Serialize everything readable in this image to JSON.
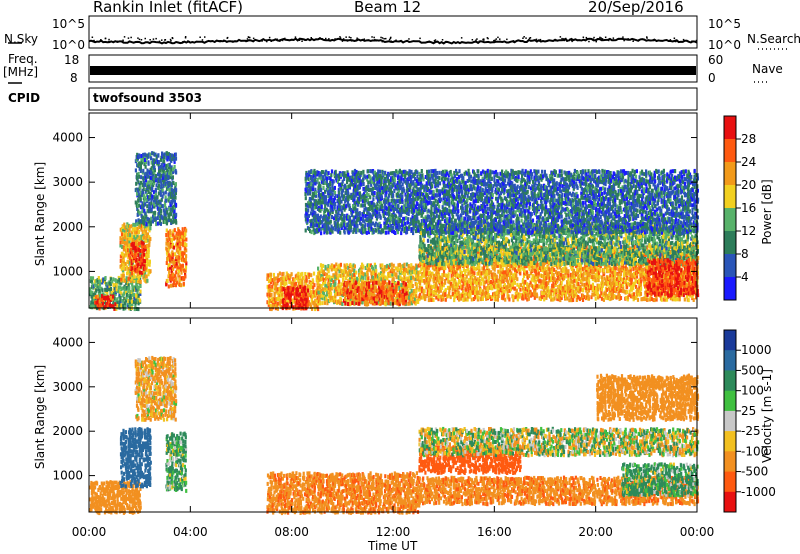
{
  "header": {
    "station": "Rankin Inlet (fitACF)",
    "beam": "Beam 12",
    "date": "20/Sep/2016"
  },
  "noise_panel": {
    "left_label": "N.Sky",
    "right_label": "N.Search",
    "left_ticks": [
      "10^5",
      "10^0"
    ],
    "right_ticks": [
      "10^5",
      "10^0"
    ]
  },
  "freq_panel": {
    "left_label_top": "Freq.",
    "left_label_bottom": "[MHz]",
    "right_label": "Nave",
    "left_ticks": [
      "18",
      "8"
    ],
    "right_ticks": [
      "60",
      "0"
    ]
  },
  "cpid": {
    "label": "CPID",
    "value": "twofsound 3503"
  },
  "chart_data": [
    {
      "type": "heatmap",
      "parameter": "Power",
      "ylabel": "Slant Range [km]",
      "xlabel": "Time UT",
      "x_ticks": [
        "00:00",
        "04:00",
        "08:00",
        "12:00",
        "16:00",
        "20:00",
        "00:00"
      ],
      "x_range_hours": [
        0,
        24
      ],
      "y_ticks": [
        1000,
        2000,
        3000,
        4000
      ],
      "ylim": [
        180,
        4550
      ],
      "colorbar": {
        "label": "Power [dB]",
        "ticks": [
          "4",
          "8",
          "12",
          "16",
          "20",
          "24",
          "28"
        ],
        "range": [
          0,
          30
        ],
        "colors": [
          "#1a1aff",
          "#2a55b8",
          "#2d7d5a",
          "#58b26a",
          "#f2d020",
          "#f29a1a",
          "#ff5a10",
          "#e81010"
        ]
      },
      "echo_regions": [
        {
          "t": [
            0.0,
            2.0
          ],
          "r": [
            200,
            900
          ],
          "value": 12
        },
        {
          "t": [
            0.2,
            1.0
          ],
          "r": [
            200,
            500
          ],
          "value": 26
        },
        {
          "t": [
            1.2,
            2.4
          ],
          "r": [
            800,
            2100
          ],
          "value": 18
        },
        {
          "t": [
            1.6,
            2.2
          ],
          "r": [
            1000,
            1700
          ],
          "value": 27
        },
        {
          "t": [
            3.0,
            3.8
          ],
          "r": [
            700,
            2000
          ],
          "value": 22
        },
        {
          "t": [
            1.8,
            3.4
          ],
          "r": [
            2100,
            3700
          ],
          "value": 8
        },
        {
          "t": [
            7.0,
            9.0
          ],
          "r": [
            200,
            1000
          ],
          "value": 20
        },
        {
          "t": [
            7.6,
            8.6
          ],
          "r": [
            200,
            700
          ],
          "value": 28
        },
        {
          "t": [
            9.0,
            13.0
          ],
          "r": [
            300,
            1200
          ],
          "value": 18
        },
        {
          "t": [
            10.0,
            12.5
          ],
          "r": [
            300,
            800
          ],
          "value": 24
        },
        {
          "t": [
            13.0,
            24.0
          ],
          "r": [
            400,
            1600
          ],
          "value": 20
        },
        {
          "t": [
            13.0,
            24.0
          ],
          "r": [
            1200,
            2100
          ],
          "value": 12
        },
        {
          "t": [
            22.0,
            24.0
          ],
          "r": [
            500,
            1300
          ],
          "value": 27
        },
        {
          "t": [
            8.5,
            24.0
          ],
          "r": [
            1900,
            3300
          ],
          "value": 7
        }
      ]
    },
    {
      "type": "heatmap",
      "parameter": "Velocity",
      "ylabel": "Slant Range [km]",
      "xlabel": "Time UT",
      "x_ticks": [
        "00:00",
        "04:00",
        "08:00",
        "12:00",
        "16:00",
        "20:00",
        "00:00"
      ],
      "x_range_hours": [
        0,
        24
      ],
      "y_ticks": [
        1000,
        2000,
        3000,
        4000
      ],
      "ylim": [
        180,
        4550
      ],
      "colorbar": {
        "label": "Velocity [m s-1]",
        "ticks": [
          "1000",
          "500",
          "100",
          "25",
          "-25",
          "-100",
          "-500",
          "-1000"
        ],
        "colors": [
          "#1a3a9a",
          "#2a6aa0",
          "#2d8a5a",
          "#40c040",
          "#c8c8c8",
          "#f2c020",
          "#f29020",
          "#ff5a10",
          "#e81010"
        ]
      },
      "echo_regions": [
        {
          "t": [
            0.0,
            2.0
          ],
          "r": [
            200,
            900
          ],
          "value": -300
        },
        {
          "t": [
            1.2,
            2.4
          ],
          "r": [
            800,
            2100
          ],
          "value": 700
        },
        {
          "t": [
            3.0,
            3.8
          ],
          "r": [
            700,
            2000
          ],
          "value": 120
        },
        {
          "t": [
            1.8,
            3.4
          ],
          "r": [
            2300,
            3700
          ],
          "value": -150
        },
        {
          "t": [
            7.0,
            13.0
          ],
          "r": [
            200,
            1100
          ],
          "value": -400
        },
        {
          "t": [
            13.0,
            17.0
          ],
          "r": [
            1100,
            1700
          ],
          "value": -800
        },
        {
          "t": [
            13.0,
            24.0
          ],
          "r": [
            400,
            1000
          ],
          "value": -400
        },
        {
          "t": [
            13.0,
            24.0
          ],
          "r": [
            1500,
            2100
          ],
          "value": 0
        },
        {
          "t": [
            21.0,
            24.0
          ],
          "r": [
            600,
            1300
          ],
          "value": 150
        },
        {
          "t": [
            20.0,
            24.0
          ],
          "r": [
            2300,
            3300
          ],
          "value": -300
        }
      ]
    }
  ]
}
